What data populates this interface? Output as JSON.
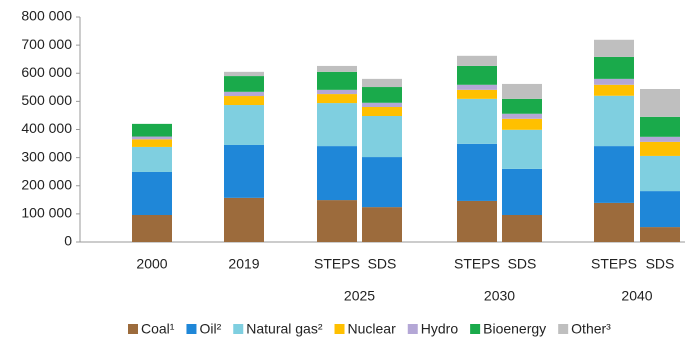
{
  "chart_data": {
    "type": "stacked-bar",
    "categories": [
      "2000",
      "2019",
      "STEPS",
      "SDS",
      "STEPS",
      "SDS",
      "STEPS",
      "SDS"
    ],
    "category_groups": [
      null,
      null,
      "2025",
      "2025",
      "2030",
      "2030",
      "2040",
      "2040"
    ],
    "series": [
      {
        "name": "Coal¹",
        "color": "#9c6b3c",
        "values": [
          96000,
          157000,
          149000,
          124000,
          146000,
          96000,
          139000,
          53000
        ]
      },
      {
        "name": "Oil²",
        "color": "#1f87d8",
        "values": [
          153000,
          188000,
          192000,
          178000,
          203000,
          164000,
          202000,
          128000
        ]
      },
      {
        "name": "Natural gas²",
        "color": "#7fcfe0",
        "values": [
          89000,
          142000,
          153000,
          146000,
          160000,
          139000,
          179000,
          125000
        ]
      },
      {
        "name": "Nuclear",
        "color": "#ffc000",
        "values": [
          27000,
          32000,
          32000,
          32000,
          32000,
          39000,
          39000,
          50000
        ]
      },
      {
        "name": "Hydro",
        "color": "#b4a7d6",
        "values": [
          10000,
          15000,
          15000,
          15000,
          18000,
          18000,
          21000,
          18000
        ]
      },
      {
        "name": "Bioenergy",
        "color": "#1aaa4b",
        "values": [
          45000,
          56000,
          64000,
          56000,
          67000,
          53000,
          78000,
          71000
        ]
      },
      {
        "name": "Other³",
        "color": "#bfbfbf",
        "values": [
          0,
          15000,
          21000,
          29000,
          36000,
          53000,
          61000,
          99000
        ]
      }
    ],
    "ylim": [
      0,
      800000
    ],
    "yticks": [
      0,
      {
        "value": 100000,
        "label": "100 000"
      },
      {
        "value": 200000,
        "label": "200 000"
      },
      {
        "value": 300000,
        "label": "300 000"
      },
      {
        "value": 400000,
        "label": "400 000"
      },
      {
        "value": 500000,
        "label": "500 000"
      },
      {
        "value": 600000,
        "label": "600 000"
      },
      {
        "value": 700000,
        "label": "700 000"
      },
      {
        "value": 800000,
        "label": "800 000"
      }
    ],
    "grid": false,
    "legend": "bottom"
  }
}
